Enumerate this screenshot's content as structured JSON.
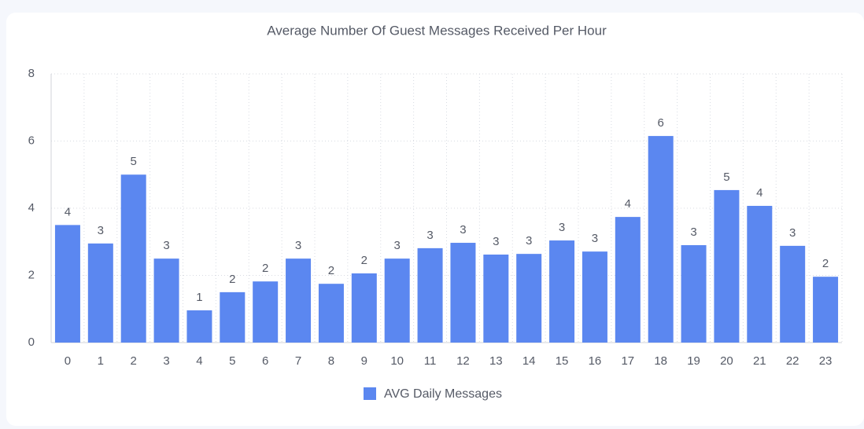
{
  "chart_data": {
    "type": "bar",
    "title": "Average Number Of Guest Messages Received Per Hour",
    "categories": [
      "0",
      "1",
      "2",
      "3",
      "4",
      "5",
      "6",
      "7",
      "8",
      "9",
      "10",
      "11",
      "12",
      "13",
      "14",
      "15",
      "16",
      "17",
      "18",
      "19",
      "20",
      "21",
      "22",
      "23"
    ],
    "series": [
      {
        "name": "AVG Daily Messages",
        "color": "#5b87f0",
        "values": [
          3.5,
          2.95,
          5.0,
          2.5,
          0.96,
          1.5,
          1.82,
          2.5,
          1.75,
          2.06,
          2.5,
          2.81,
          2.97,
          2.62,
          2.64,
          3.04,
          2.71,
          3.74,
          6.15,
          2.9,
          4.54,
          4.07,
          2.88,
          1.96
        ],
        "value_labels": [
          "4",
          "3",
          "5",
          "3",
          "1",
          "2",
          "2",
          "3",
          "2",
          "2",
          "3",
          "3",
          "3",
          "3",
          "3",
          "3",
          "3",
          "4",
          "6",
          "3",
          "5",
          "4",
          "3",
          "2"
        ]
      }
    ],
    "ylim": [
      0,
      8
    ],
    "yticks": [
      0,
      2,
      4,
      6,
      8
    ],
    "grid": true
  }
}
